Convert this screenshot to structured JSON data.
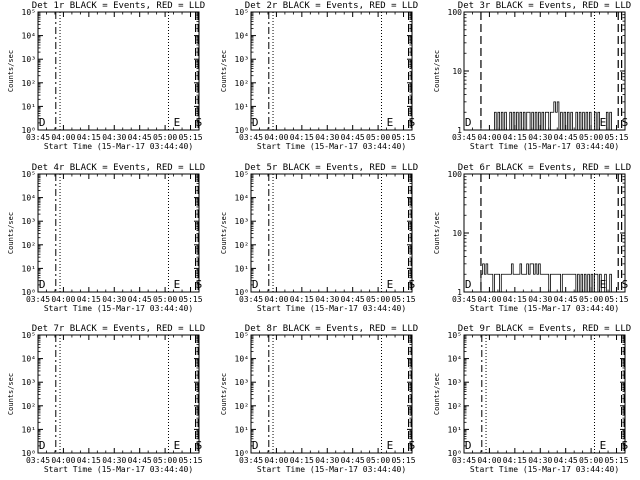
{
  "figure": {
    "xlabel": "Start Time (15-Mar-17 03:44:40)",
    "ylabel": "Counts/sec",
    "x_tick_labels": [
      "03:45",
      "04:00",
      "04:15",
      "04:30",
      "04:45",
      "05:00",
      "05:15"
    ],
    "x_range_minutes_after_0345": [
      0,
      95
    ],
    "line_color": "#000000"
  },
  "chart_data": [
    {
      "type": "line",
      "title": "Det 1r BLACK = Events, RED = LLD",
      "y_scale": "log",
      "ylim": [
        1,
        100000
      ],
      "y_tick_labels": [
        "10⁰",
        "10¹",
        "10²",
        "10³",
        "10⁴",
        "10⁵"
      ],
      "y_tick_values": [
        1,
        10,
        100,
        1000,
        10000,
        100000
      ],
      "markers": [
        {
          "label": "D",
          "x": 0.5
        },
        {
          "label": "E",
          "x": 80
        },
        {
          "label": "S",
          "x": 93
        }
      ],
      "vlines": [
        {
          "x": 10.5,
          "style": "dashdot"
        },
        {
          "x": 13,
          "style": "dotted"
        },
        {
          "x": 77,
          "style": "dotted"
        },
        {
          "x": 93,
          "style": "dashed"
        },
        {
          "x": 94.5,
          "style": "dashed"
        }
      ],
      "series": []
    },
    {
      "type": "line",
      "title": "Det 2r BLACK = Events, RED = LLD",
      "y_scale": "log",
      "ylim": [
        1,
        100000
      ],
      "y_tick_labels": [
        "10⁰",
        "10¹",
        "10²",
        "10³",
        "10⁴",
        "10⁵"
      ],
      "y_tick_values": [
        1,
        10,
        100,
        1000,
        10000,
        100000
      ],
      "markers": [
        {
          "label": "D",
          "x": 0.5
        },
        {
          "label": "E",
          "x": 80
        },
        {
          "label": "S",
          "x": 93
        }
      ],
      "vlines": [
        {
          "x": 10.5,
          "style": "dashdot"
        },
        {
          "x": 13,
          "style": "dotted"
        },
        {
          "x": 77,
          "style": "dotted"
        },
        {
          "x": 93,
          "style": "dashed"
        },
        {
          "x": 94.5,
          "style": "dashed"
        }
      ],
      "series": []
    },
    {
      "type": "line",
      "title": "Det 3r BLACK = Events, RED = LLD",
      "y_scale": "log",
      "ylim": [
        1,
        100
      ],
      "y_tick_labels": [
        "1",
        "10",
        "100"
      ],
      "y_tick_values": [
        1,
        10,
        100
      ],
      "markers": [
        {
          "label": "D",
          "x": 0.5
        },
        {
          "label": "E",
          "x": 80
        },
        {
          "label": "S",
          "x": 93
        }
      ],
      "vlines": [
        {
          "x": 10,
          "style": "dashed"
        },
        {
          "x": 77,
          "style": "dotted"
        },
        {
          "x": 91,
          "style": "dashed"
        },
        {
          "x": 93,
          "style": "dashed"
        }
      ],
      "series": [
        {
          "x": [
            17,
            18,
            19,
            20,
            21,
            22,
            23,
            24,
            25,
            26,
            27,
            28,
            29,
            30,
            31,
            32,
            33,
            34,
            35,
            36,
            37,
            38,
            39,
            40,
            41,
            42,
            43,
            44,
            45,
            46,
            47,
            48,
            49,
            50,
            51,
            52,
            53,
            54,
            55,
            56,
            57,
            58,
            59,
            60,
            61,
            62,
            63,
            64,
            65,
            66,
            67,
            68,
            69,
            70,
            71,
            72,
            73,
            74,
            75,
            76,
            77,
            78,
            79,
            80,
            81,
            82,
            83,
            84,
            85,
            86
          ],
          "y": [
            1,
            2,
            1,
            2,
            1,
            2,
            1,
            2,
            1,
            1,
            2,
            1,
            2,
            1,
            2,
            1,
            2,
            1,
            2,
            1,
            2,
            2,
            1,
            2,
            1,
            2,
            1,
            2,
            1,
            2,
            1,
            2,
            2,
            1,
            2,
            2,
            3,
            2,
            3,
            1,
            2,
            1,
            2,
            1,
            2,
            1,
            2,
            1,
            1,
            2,
            1,
            2,
            1,
            2,
            1,
            2,
            1,
            2,
            1,
            1,
            2,
            1,
            2,
            1,
            1,
            1,
            1,
            2,
            1,
            2
          ]
        }
      ]
    },
    {
      "type": "line",
      "title": "Det 4r BLACK = Events, RED = LLD",
      "y_scale": "log",
      "ylim": [
        1,
        100000
      ],
      "y_tick_labels": [
        "10⁰",
        "10¹",
        "10²",
        "10³",
        "10⁴",
        "10⁵"
      ],
      "y_tick_values": [
        1,
        10,
        100,
        1000,
        10000,
        100000
      ],
      "markers": [
        {
          "label": "D",
          "x": 0.5
        },
        {
          "label": "E",
          "x": 80
        },
        {
          "label": "S",
          "x": 93
        }
      ],
      "vlines": [
        {
          "x": 10.5,
          "style": "dashdot"
        },
        {
          "x": 13,
          "style": "dotted"
        },
        {
          "x": 77,
          "style": "dotted"
        },
        {
          "x": 93,
          "style": "dashed"
        },
        {
          "x": 94.5,
          "style": "dashed"
        }
      ],
      "series": []
    },
    {
      "type": "line",
      "title": "Det 5r BLACK = Events, RED = LLD",
      "y_scale": "log",
      "ylim": [
        1,
        100000
      ],
      "y_tick_labels": [
        "10⁰",
        "10¹",
        "10²",
        "10³",
        "10⁴",
        "10⁵"
      ],
      "y_tick_values": [
        1,
        10,
        100,
        1000,
        10000,
        100000
      ],
      "markers": [
        {
          "label": "D",
          "x": 0.5
        },
        {
          "label": "E",
          "x": 80
        },
        {
          "label": "S",
          "x": 93
        }
      ],
      "vlines": [
        {
          "x": 10.5,
          "style": "dashdot"
        },
        {
          "x": 13,
          "style": "dotted"
        },
        {
          "x": 77,
          "style": "dotted"
        },
        {
          "x": 93,
          "style": "dashed"
        },
        {
          "x": 94.5,
          "style": "dashed"
        }
      ],
      "series": []
    },
    {
      "type": "line",
      "title": "Det 6r BLACK = Events, RED = LLD",
      "y_scale": "log",
      "ylim": [
        1,
        100
      ],
      "y_tick_labels": [
        "1",
        "10",
        "100"
      ],
      "y_tick_values": [
        1,
        10,
        100
      ],
      "markers": [
        {
          "label": "D",
          "x": 0.5
        },
        {
          "label": "E",
          "x": 80
        },
        {
          "label": "S",
          "x": 93
        }
      ],
      "vlines": [
        {
          "x": 10,
          "style": "dashed"
        },
        {
          "x": 77,
          "style": "dotted"
        },
        {
          "x": 91,
          "style": "dashed"
        },
        {
          "x": 93,
          "style": "dashed"
        }
      ],
      "series": [
        {
          "x": [
            10,
            11,
            12,
            13,
            14,
            15,
            16,
            17,
            18,
            19,
            20,
            21,
            22,
            23,
            24,
            25,
            26,
            27,
            28,
            29,
            30,
            31,
            32,
            33,
            34,
            35,
            36,
            37,
            38,
            39,
            40,
            41,
            42,
            43,
            44,
            45,
            46,
            47,
            48,
            49,
            50,
            51,
            52,
            53,
            54,
            55,
            56,
            57,
            58,
            59,
            60,
            61,
            62,
            63,
            64,
            65,
            66,
            67,
            68,
            69,
            70,
            71,
            72,
            73,
            74,
            75,
            76,
            77,
            78,
            79,
            80,
            81,
            82,
            83,
            84,
            85,
            86
          ],
          "y": [
            2,
            3,
            2,
            3,
            2,
            2,
            2,
            1,
            2,
            2,
            2,
            1,
            2,
            2,
            2,
            2,
            2,
            2,
            3,
            2,
            2,
            2,
            2,
            3,
            2,
            2,
            2,
            3,
            2,
            3,
            3,
            2,
            3,
            2,
            3,
            2,
            2,
            2,
            2,
            2,
            1,
            2,
            2,
            2,
            2,
            2,
            2,
            1,
            2,
            2,
            2,
            2,
            2,
            2,
            2,
            2,
            1,
            2,
            1,
            2,
            1,
            2,
            1,
            2,
            1,
            2,
            1,
            2,
            2,
            1,
            2,
            1,
            1,
            2,
            1,
            1,
            2
          ]
        }
      ]
    },
    {
      "type": "line",
      "title": "Det 7r BLACK = Events, RED = LLD",
      "y_scale": "log",
      "ylim": [
        1,
        100000
      ],
      "y_tick_labels": [
        "10⁰",
        "10¹",
        "10²",
        "10³",
        "10⁴",
        "10⁵"
      ],
      "y_tick_values": [
        1,
        10,
        100,
        1000,
        10000,
        100000
      ],
      "markers": [
        {
          "label": "D",
          "x": 0.5
        },
        {
          "label": "E",
          "x": 80
        },
        {
          "label": "S",
          "x": 93
        }
      ],
      "vlines": [
        {
          "x": 10.5,
          "style": "dashdot"
        },
        {
          "x": 13,
          "style": "dotted"
        },
        {
          "x": 77,
          "style": "dotted"
        },
        {
          "x": 93,
          "style": "dashed"
        },
        {
          "x": 94.5,
          "style": "dashed"
        }
      ],
      "series": []
    },
    {
      "type": "line",
      "title": "Det 8r BLACK = Events, RED = LLD",
      "y_scale": "log",
      "ylim": [
        1,
        100000
      ],
      "y_tick_labels": [
        "10⁰",
        "10¹",
        "10²",
        "10³",
        "10⁴",
        "10⁵"
      ],
      "y_tick_values": [
        1,
        10,
        100,
        1000,
        10000,
        100000
      ],
      "markers": [
        {
          "label": "D",
          "x": 0.5
        },
        {
          "label": "E",
          "x": 80
        },
        {
          "label": "S",
          "x": 93
        }
      ],
      "vlines": [
        {
          "x": 10.5,
          "style": "dashdot"
        },
        {
          "x": 13,
          "style": "dotted"
        },
        {
          "x": 77,
          "style": "dotted"
        },
        {
          "x": 93,
          "style": "dashed"
        },
        {
          "x": 94.5,
          "style": "dashed"
        }
      ],
      "series": []
    },
    {
      "type": "line",
      "title": "Det 9r BLACK = Events, RED = LLD",
      "y_scale": "log",
      "ylim": [
        1,
        100000
      ],
      "y_tick_labels": [
        "10⁰",
        "10¹",
        "10²",
        "10³",
        "10⁴",
        "10⁵"
      ],
      "y_tick_values": [
        1,
        10,
        100,
        1000,
        10000,
        100000
      ],
      "markers": [
        {
          "label": "D",
          "x": 0.5
        },
        {
          "label": "E",
          "x": 80
        },
        {
          "label": "S",
          "x": 93
        }
      ],
      "vlines": [
        {
          "x": 10.5,
          "style": "dashdot"
        },
        {
          "x": 13,
          "style": "dotted"
        },
        {
          "x": 77,
          "style": "dotted"
        },
        {
          "x": 93,
          "style": "dashed"
        },
        {
          "x": 94.5,
          "style": "dashed"
        }
      ],
      "series": []
    }
  ]
}
